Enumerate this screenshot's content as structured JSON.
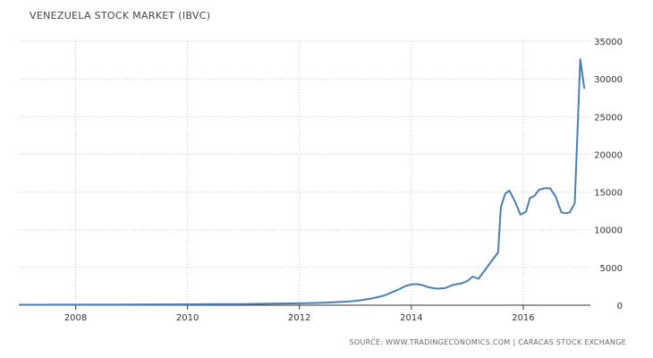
{
  "chart_data": {
    "type": "line",
    "title": "VENEZUELA STOCK MARKET (IBVC)",
    "source": "SOURCE: WWW.TRADINGECONOMICS.COM | CARACAS STOCK EXCHANGE",
    "x_ticks": [
      "2008",
      "2010",
      "2012",
      "2014",
      "2016"
    ],
    "y_ticks": [
      "35000",
      "30000",
      "25000",
      "20000",
      "15000",
      "10000",
      "5000",
      "0"
    ],
    "xlim": [
      2007.0,
      2017.2
    ],
    "ylim": [
      0,
      35000
    ],
    "grid": true,
    "line_color": "#4a7fb5",
    "series": [
      {
        "x": [
          2007.0,
          2008.0,
          2009.0,
          2010.0,
          2010.5,
          2011.0,
          2011.5,
          2012.0,
          2012.3,
          2012.6,
          2012.9,
          2013.1,
          2013.3,
          2013.5,
          2013.6,
          2013.75,
          2013.9,
          2014.0,
          2014.1,
          2014.2,
          2014.3,
          2014.45,
          2014.6,
          2014.75,
          2014.9,
          2015.0,
          2015.1,
          2015.2,
          2015.3,
          2015.45,
          2015.55,
          2015.6,
          2015.68,
          2015.75,
          2015.85,
          2015.95,
          2016.05,
          2016.12,
          2016.2,
          2016.28,
          2016.38,
          2016.48,
          2016.58,
          2016.68,
          2016.75,
          2016.83,
          2016.92,
          2017.02,
          2017.09
        ],
        "y": [
          60,
          70,
          80,
          120,
          140,
          160,
          200,
          250,
          300,
          380,
          500,
          650,
          900,
          1250,
          1550,
          2000,
          2550,
          2750,
          2800,
          2650,
          2400,
          2200,
          2250,
          2700,
          2900,
          3200,
          3800,
          3500,
          4500,
          6000,
          7000,
          13000,
          14800,
          15200,
          13800,
          12000,
          12400,
          14200,
          14500,
          15300,
          15500,
          15500,
          14400,
          12300,
          12200,
          12300,
          13500,
          32600,
          28800
        ]
      }
    ]
  }
}
